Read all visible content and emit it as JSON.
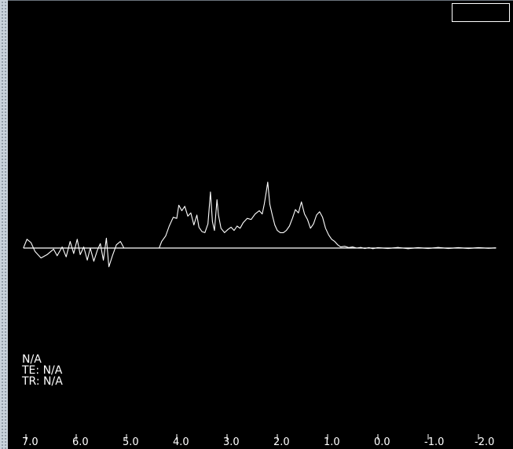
{
  "app": {
    "status_box_text": ""
  },
  "info": {
    "line1": "N/A",
    "line2": "TE: N/A",
    "line3": "TR: N/A"
  },
  "colors": {
    "background": "#000000",
    "trace": "#ffffff",
    "baseline": "#ffffff",
    "rail": "#c9d3dc"
  },
  "chart_data": {
    "type": "line",
    "title": "",
    "xlabel": "",
    "ylabel": "",
    "x_reversed": true,
    "xlim": [
      7.1,
      -2.4
    ],
    "ylim": [
      -1.0,
      5.0
    ],
    "ticks": [
      "7.0",
      "6.0",
      "5.0",
      "4.0",
      "3.0",
      "2.0",
      "1.0",
      "0.0",
      "-1.0",
      "-2.0"
    ],
    "grid": false,
    "legend": "none",
    "series": [
      {
        "name": "",
        "points": [
          [
            7.05,
            0.0
          ],
          [
            6.98,
            0.4
          ],
          [
            6.9,
            0.25
          ],
          [
            6.82,
            -0.15
          ],
          [
            6.7,
            -0.45
          ],
          [
            6.58,
            -0.3
          ],
          [
            6.45,
            -0.05
          ],
          [
            6.38,
            -0.35
          ],
          [
            6.28,
            0.05
          ],
          [
            6.2,
            -0.4
          ],
          [
            6.12,
            0.3
          ],
          [
            6.05,
            -0.25
          ],
          [
            5.98,
            0.4
          ],
          [
            5.92,
            -0.3
          ],
          [
            5.85,
            0.05
          ],
          [
            5.78,
            -0.55
          ],
          [
            5.72,
            0.0
          ],
          [
            5.65,
            -0.6
          ],
          [
            5.58,
            -0.1
          ],
          [
            5.52,
            0.2
          ],
          [
            5.46,
            -0.55
          ],
          [
            5.4,
            0.45
          ],
          [
            5.35,
            -0.85
          ],
          [
            5.28,
            -0.35
          ],
          [
            5.2,
            0.15
          ],
          [
            5.12,
            0.3
          ],
          [
            5.05,
            0.0
          ],
          [
            4.9,
            0.0
          ],
          [
            4.35,
            0.0
          ],
          [
            4.3,
            0.3
          ],
          [
            4.22,
            0.55
          ],
          [
            4.15,
            1.0
          ],
          [
            4.07,
            1.4
          ],
          [
            4.0,
            1.35
          ],
          [
            3.96,
            1.95
          ],
          [
            3.9,
            1.7
          ],
          [
            3.84,
            1.9
          ],
          [
            3.78,
            1.45
          ],
          [
            3.72,
            1.6
          ],
          [
            3.66,
            1.05
          ],
          [
            3.6,
            1.5
          ],
          [
            3.56,
            0.95
          ],
          [
            3.5,
            0.75
          ],
          [
            3.44,
            0.7
          ],
          [
            3.38,
            1.1
          ],
          [
            3.33,
            2.55
          ],
          [
            3.29,
            1.2
          ],
          [
            3.25,
            0.8
          ],
          [
            3.2,
            2.2
          ],
          [
            3.17,
            1.5
          ],
          [
            3.12,
            0.9
          ],
          [
            3.05,
            0.7
          ],
          [
            2.98,
            0.85
          ],
          [
            2.92,
            0.95
          ],
          [
            2.86,
            0.8
          ],
          [
            2.8,
            1.0
          ],
          [
            2.74,
            0.9
          ],
          [
            2.68,
            1.15
          ],
          [
            2.6,
            1.35
          ],
          [
            2.52,
            1.3
          ],
          [
            2.44,
            1.55
          ],
          [
            2.36,
            1.7
          ],
          [
            2.3,
            1.55
          ],
          [
            2.26,
            2.0
          ],
          [
            2.22,
            2.55
          ],
          [
            2.19,
            3.0
          ],
          [
            2.15,
            2.0
          ],
          [
            2.1,
            1.5
          ],
          [
            2.05,
            1.05
          ],
          [
            2.0,
            0.8
          ],
          [
            1.94,
            0.7
          ],
          [
            1.88,
            0.7
          ],
          [
            1.82,
            0.8
          ],
          [
            1.76,
            1.0
          ],
          [
            1.7,
            1.35
          ],
          [
            1.64,
            1.75
          ],
          [
            1.58,
            1.6
          ],
          [
            1.52,
            2.1
          ],
          [
            1.46,
            1.55
          ],
          [
            1.4,
            1.3
          ],
          [
            1.34,
            0.9
          ],
          [
            1.28,
            1.1
          ],
          [
            1.22,
            1.5
          ],
          [
            1.16,
            1.65
          ],
          [
            1.1,
            1.4
          ],
          [
            1.04,
            0.9
          ],
          [
            0.98,
            0.6
          ],
          [
            0.92,
            0.4
          ],
          [
            0.86,
            0.3
          ],
          [
            0.8,
            0.15
          ],
          [
            0.74,
            0.05
          ],
          [
            0.66,
            0.08
          ],
          [
            0.58,
            0.02
          ],
          [
            0.5,
            0.05
          ],
          [
            0.42,
            0.0
          ],
          [
            0.34,
            0.03
          ],
          [
            0.26,
            -0.02
          ],
          [
            0.18,
            0.02
          ],
          [
            0.1,
            -0.03
          ],
          [
            0.0,
            0.02
          ],
          [
            -0.2,
            -0.02
          ],
          [
            -0.4,
            0.03
          ],
          [
            -0.6,
            -0.03
          ],
          [
            -0.8,
            0.02
          ],
          [
            -1.0,
            -0.02
          ],
          [
            -1.2,
            0.03
          ],
          [
            -1.4,
            -0.02
          ],
          [
            -1.6,
            0.02
          ],
          [
            -1.8,
            -0.02
          ],
          [
            -2.0,
            0.02
          ],
          [
            -2.2,
            -0.01
          ],
          [
            -2.35,
            0.01
          ]
        ]
      }
    ],
    "baseline": {
      "y": 0.0,
      "from": 7.05,
      "to": -2.35
    }
  }
}
